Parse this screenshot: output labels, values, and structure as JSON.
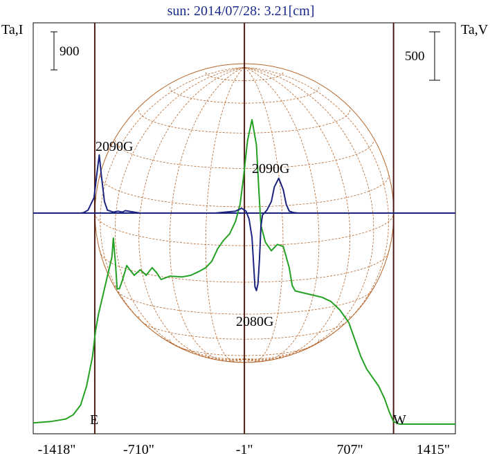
{
  "chart_data": {
    "type": "line",
    "title": "sun: 2014/07/28: 3.21[cm]",
    "left_axis_label": "Ta,I",
    "right_axis_label": "Ta,V",
    "left_scale_bar_label": "900",
    "right_scale_bar_label": "500",
    "x_tick_labels": [
      "-1418\"",
      "-710\"",
      "-1\"",
      "707\"",
      "1415\""
    ],
    "x_ticks": [
      -1418,
      -710,
      -1,
      707,
      1415
    ],
    "xlim": [
      -1418,
      1415
    ],
    "limb_labels": {
      "east": "E",
      "west": "W"
    },
    "limb_positions": [
      -1005,
      1000
    ],
    "center_position": -1,
    "annotations": [
      {
        "text": "2090G",
        "x": -1000,
        "y_ref": "I"
      },
      {
        "text": "2090G",
        "x": 300,
        "y_ref": "I"
      },
      {
        "text": "2080G",
        "x": 100,
        "y_ref": "V"
      }
    ],
    "series": [
      {
        "name": "I",
        "color": "#22a022",
        "x": [
          -1418,
          -1300,
          -1200,
          -1150,
          -1100,
          -1060,
          -1020,
          -1000,
          -980,
          -960,
          -920,
          -890,
          -880,
          -865,
          -855,
          -840,
          -820,
          -790,
          -770,
          -740,
          -700,
          -660,
          -620,
          -590,
          -560,
          -500,
          -420,
          -360,
          -300,
          -260,
          -220,
          -180,
          -140,
          -100,
          -60,
          -30,
          -10,
          20,
          50,
          80,
          95,
          110,
          140,
          180,
          220,
          260,
          300,
          320,
          340,
          400,
          460,
          520,
          580,
          640,
          700,
          740,
          780,
          820,
          860,
          900,
          940,
          970,
          1000,
          1040,
          1080,
          1120,
          1160,
          1200,
          1260,
          1320,
          1380,
          1415
        ],
        "y": [
          30,
          60,
          120,
          220,
          450,
          900,
          1600,
          2200,
          2600,
          2900,
          3500,
          3950,
          4400,
          3750,
          3200,
          3200,
          3400,
          3750,
          3650,
          3520,
          3650,
          3520,
          3700,
          3580,
          3420,
          3500,
          3480,
          3520,
          3620,
          3700,
          3850,
          4150,
          4350,
          4500,
          4800,
          5200,
          5750,
          6700,
          7200,
          6600,
          5600,
          4700,
          4300,
          4100,
          4250,
          4200,
          3700,
          3280,
          3150,
          3100,
          3050,
          3000,
          2900,
          2700,
          2400,
          2000,
          1600,
          1300,
          1100,
          900,
          600,
          300,
          60,
          0,
          0,
          0,
          0,
          0,
          0,
          0,
          0,
          0
        ]
      },
      {
        "name": "V",
        "color": "#1a237e",
        "x": [
          -1418,
          -1200,
          -1120,
          -1100,
          -1080,
          -1050,
          -1010,
          -990,
          -975,
          -960,
          -940,
          -920,
          -880,
          -850,
          -820,
          -800,
          -740,
          -700,
          -600,
          -400,
          -200,
          -60,
          -20,
          10,
          30,
          50,
          60,
          70,
          80,
          90,
          100,
          110,
          120,
          150,
          180,
          200,
          230,
          260,
          280,
          300,
          330,
          360,
          400,
          600,
          800,
          1000,
          1415
        ],
        "y": [
          0,
          0,
          0,
          0,
          5,
          30,
          160,
          420,
          600,
          380,
          120,
          30,
          10,
          20,
          10,
          25,
          10,
          0,
          0,
          0,
          0,
          20,
          50,
          20,
          -60,
          -250,
          -500,
          -760,
          -800,
          -730,
          -480,
          -140,
          -20,
          30,
          120,
          270,
          360,
          240,
          90,
          20,
          5,
          0,
          0,
          0,
          0,
          0,
          0
        ]
      }
    ],
    "grid": false,
    "legend": "none"
  }
}
